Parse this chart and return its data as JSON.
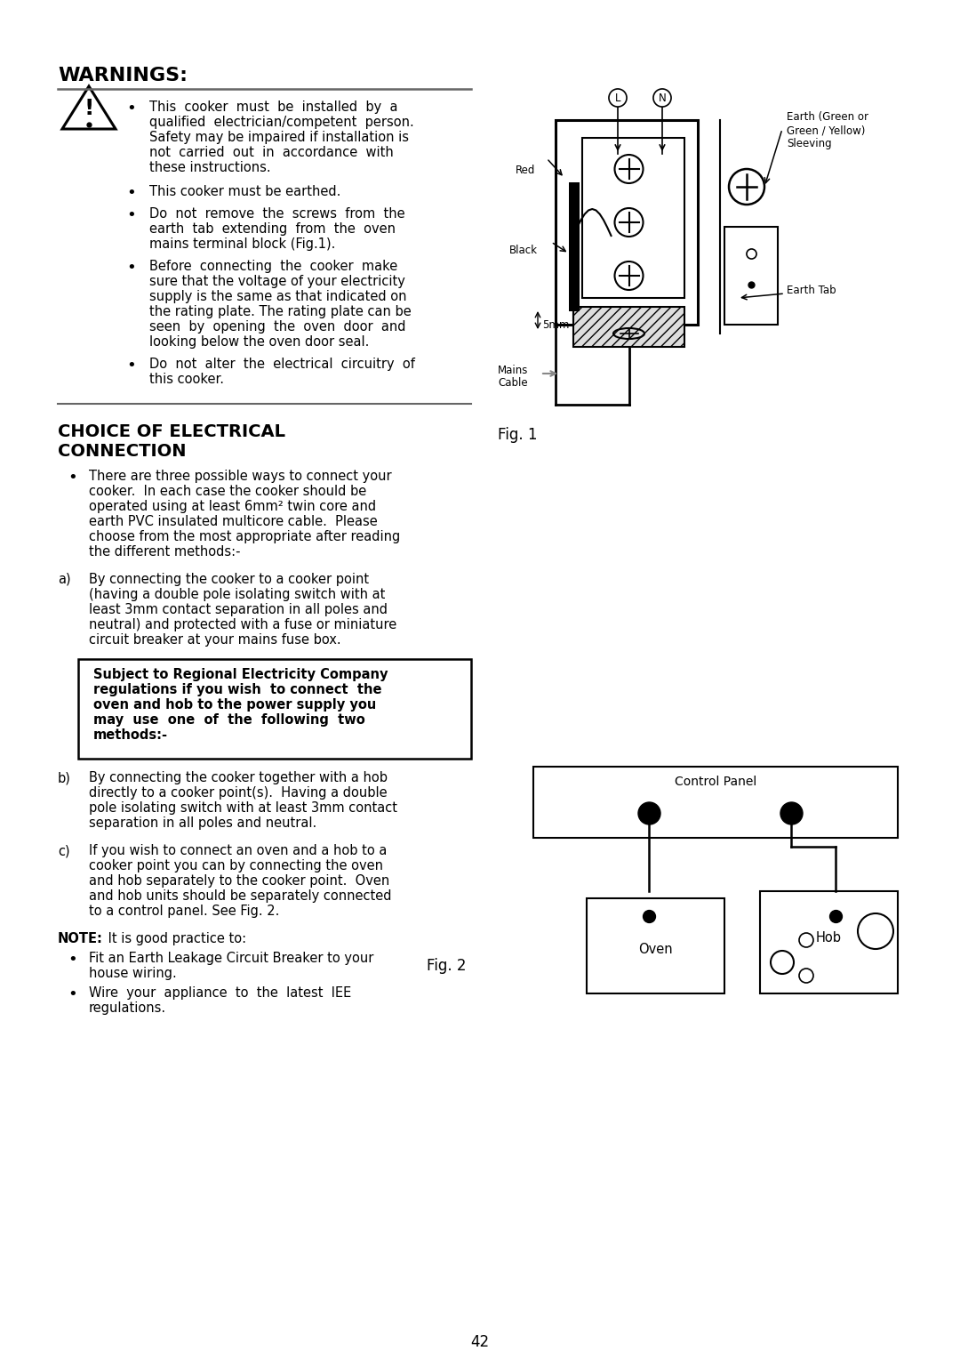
{
  "bg_color": "#ffffff",
  "page_number": "42",
  "warnings_title": "WARNINGS:",
  "choice_title_line1": "CHOICE OF ELECTRICAL",
  "choice_title_line2": "CONNECTION",
  "fig1_label": "Fig. 1",
  "fig2_label": "Fig. 2",
  "note_label": "NOTE:"
}
